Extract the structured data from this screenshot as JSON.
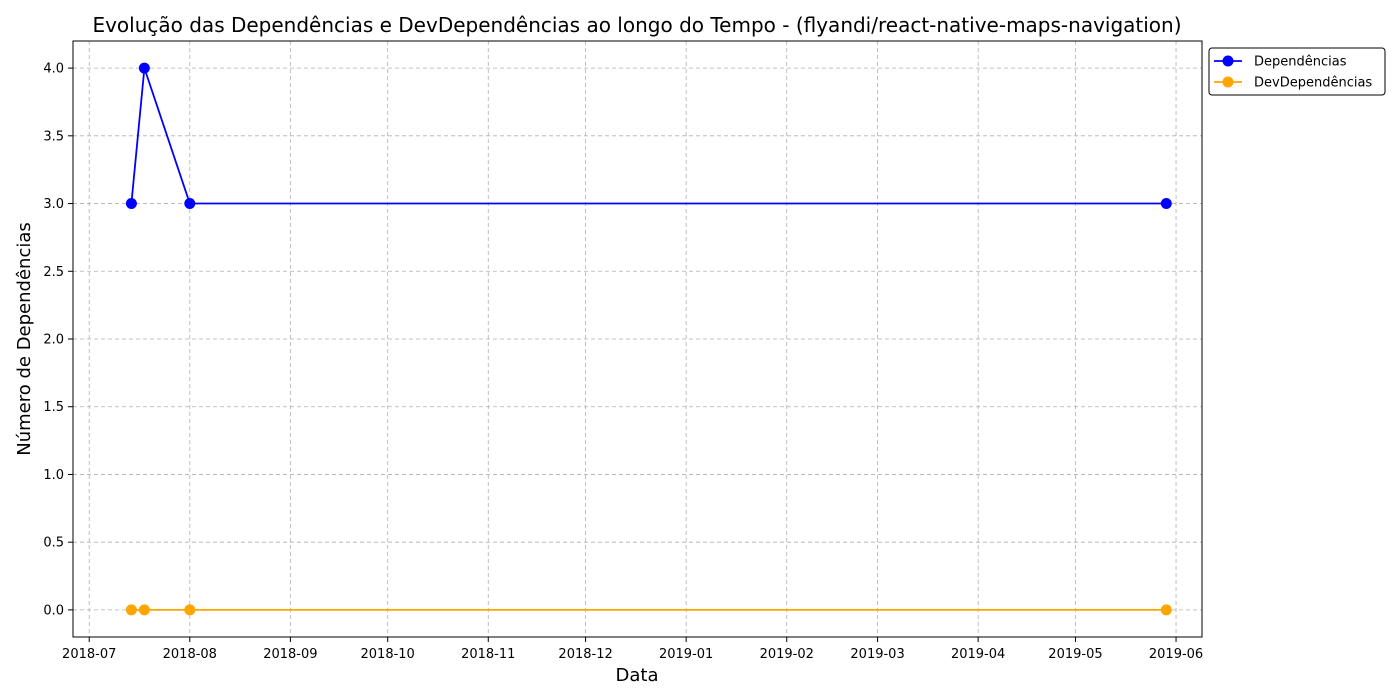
{
  "chart_data": {
    "type": "line",
    "title": "Evolução das Dependências e DevDependências ao longo do Tempo - (flyandi/react-native-maps-navigation)",
    "xlabel": "Data",
    "ylabel": "Número de Dependências",
    "x_ticks": [
      "2018-07",
      "2018-08",
      "2018-09",
      "2018-10",
      "2018-11",
      "2018-12",
      "2019-01",
      "2019-02",
      "2019-03",
      "2019-04",
      "2019-05",
      "2019-06"
    ],
    "y_ticks": [
      "0.0",
      "0.5",
      "1.0",
      "1.5",
      "2.0",
      "2.5",
      "3.0",
      "3.5",
      "4.0"
    ],
    "xlim": [
      "2018-06-26",
      "2019-06-09"
    ],
    "ylim": [
      -0.2,
      4.2
    ],
    "grid": true,
    "legend_position": "outside-top-right",
    "series": [
      {
        "name": "Dependências",
        "color": "#0000ff",
        "x": [
          "2018-07-14",
          "2018-07-18",
          "2018-08-01",
          "2019-05-29"
        ],
        "values": [
          3,
          4,
          3,
          3
        ]
      },
      {
        "name": "DevDependências",
        "color": "#ffa500",
        "x": [
          "2018-07-14",
          "2018-07-18",
          "2018-08-01",
          "2019-05-29"
        ],
        "values": [
          0,
          0,
          0,
          0
        ]
      }
    ]
  }
}
